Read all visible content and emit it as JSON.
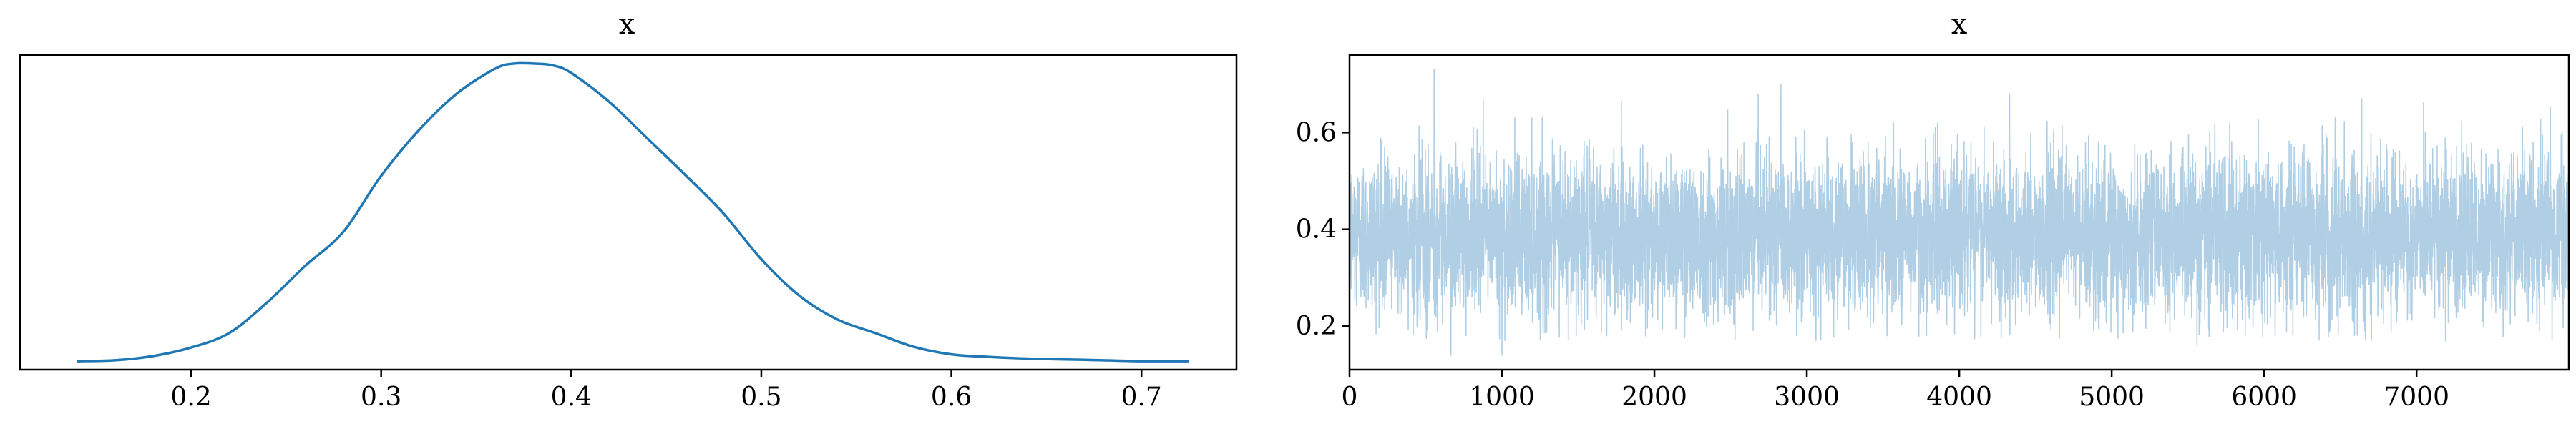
{
  "chart_data": [
    {
      "type": "area",
      "title": "x",
      "xlabel": "",
      "ylabel": "",
      "xlim": [
        0.11,
        0.75
      ],
      "ylim": [
        -0.1,
        3.6
      ],
      "xticks": [
        0.2,
        0.3,
        0.4,
        0.5,
        0.6,
        0.7
      ],
      "xtick_labels": [
        "0.2",
        "0.3",
        "0.4",
        "0.5",
        "0.6",
        "0.7"
      ],
      "yticks": [],
      "grid": false,
      "color": "#1f77b4",
      "series": [
        {
          "x": [
            0.14,
            0.16,
            0.18,
            0.2,
            0.22,
            0.24,
            0.26,
            0.28,
            0.3,
            0.32,
            0.34,
            0.36,
            0.37,
            0.38,
            0.39,
            0.4,
            0.42,
            0.44,
            0.46,
            0.48,
            0.5,
            0.52,
            0.54,
            0.56,
            0.58,
            0.6,
            0.62,
            0.64,
            0.66,
            0.68,
            0.7,
            0.725
          ],
          "y": [
            0.0,
            0.01,
            0.06,
            0.16,
            0.33,
            0.69,
            1.12,
            1.52,
            2.18,
            2.72,
            3.15,
            3.44,
            3.5,
            3.5,
            3.48,
            3.39,
            3.05,
            2.62,
            2.19,
            1.74,
            1.2,
            0.77,
            0.49,
            0.33,
            0.17,
            0.08,
            0.05,
            0.03,
            0.02,
            0.01,
            0.0,
            0.0
          ]
        }
      ]
    },
    {
      "type": "line",
      "title": "x",
      "xlabel": "",
      "ylabel": "",
      "xlim": [
        0,
        7999
      ],
      "ylim": [
        0.11,
        0.76
      ],
      "xticks": [
        0,
        1000,
        2000,
        3000,
        4000,
        5000,
        6000,
        7000
      ],
      "xtick_labels": [
        "0",
        "1000",
        "2000",
        "3000",
        "4000",
        "5000",
        "6000",
        "7000"
      ],
      "yticks": [
        0.2,
        0.4,
        0.6
      ],
      "ytick_labels": [
        "0.2",
        "0.4",
        "0.6"
      ],
      "grid": false,
      "color": "#b0cfe5",
      "n_draws": 8000,
      "series": [
        {
          "summary": {
            "mean": 0.39,
            "sd": 0.08,
            "min": 0.14,
            "max": 0.73
          },
          "extremes": [
            {
              "x": 555,
              "y": 0.73
            },
            {
              "x": 665,
              "y": 0.14
            },
            {
              "x": 1000,
              "y": 0.14
            },
            {
              "x": 2830,
              "y": 0.7
            },
            {
              "x": 3060,
              "y": 0.17
            },
            {
              "x": 4330,
              "y": 0.68
            },
            {
              "x": 5560,
              "y": 0.16
            },
            {
              "x": 6640,
              "y": 0.67
            },
            {
              "x": 7190,
              "y": 0.17
            }
          ]
        }
      ]
    }
  ]
}
